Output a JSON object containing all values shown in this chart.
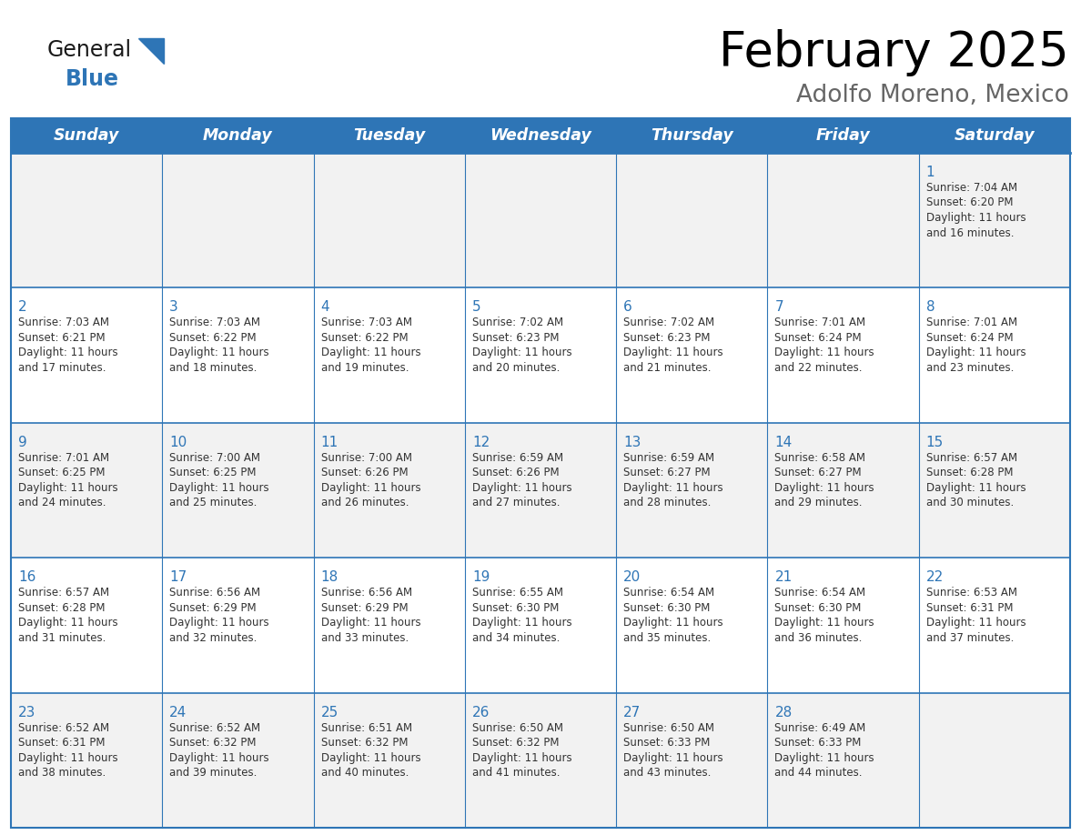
{
  "title": "February 2025",
  "subtitle": "Adolfo Moreno, Mexico",
  "days_of_week": [
    "Sunday",
    "Monday",
    "Tuesday",
    "Wednesday",
    "Thursday",
    "Friday",
    "Saturday"
  ],
  "header_bg": "#2E75B6",
  "header_text": "#FFFFFF",
  "cell_bg_light": "#F2F2F2",
  "cell_bg_white": "#FFFFFF",
  "border_color": "#2E75B6",
  "text_color": "#333333",
  "day_number_color": "#2E75B6",
  "title_color": "#000000",
  "subtitle_color": "#555555",
  "calendar_data": [
    [
      null,
      null,
      null,
      null,
      null,
      null,
      1
    ],
    [
      2,
      3,
      4,
      5,
      6,
      7,
      8
    ],
    [
      9,
      10,
      11,
      12,
      13,
      14,
      15
    ],
    [
      16,
      17,
      18,
      19,
      20,
      21,
      22
    ],
    [
      23,
      24,
      25,
      26,
      27,
      28,
      null
    ]
  ],
  "sunrise_data": {
    "1": "7:04 AM",
    "2": "7:03 AM",
    "3": "7:03 AM",
    "4": "7:03 AM",
    "5": "7:02 AM",
    "6": "7:02 AM",
    "7": "7:01 AM",
    "8": "7:01 AM",
    "9": "7:01 AM",
    "10": "7:00 AM",
    "11": "7:00 AM",
    "12": "6:59 AM",
    "13": "6:59 AM",
    "14": "6:58 AM",
    "15": "6:57 AM",
    "16": "6:57 AM",
    "17": "6:56 AM",
    "18": "6:56 AM",
    "19": "6:55 AM",
    "20": "6:54 AM",
    "21": "6:54 AM",
    "22": "6:53 AM",
    "23": "6:52 AM",
    "24": "6:52 AM",
    "25": "6:51 AM",
    "26": "6:50 AM",
    "27": "6:50 AM",
    "28": "6:49 AM"
  },
  "sunset_data": {
    "1": "6:20 PM",
    "2": "6:21 PM",
    "3": "6:22 PM",
    "4": "6:22 PM",
    "5": "6:23 PM",
    "6": "6:23 PM",
    "7": "6:24 PM",
    "8": "6:24 PM",
    "9": "6:25 PM",
    "10": "6:25 PM",
    "11": "6:26 PM",
    "12": "6:26 PM",
    "13": "6:27 PM",
    "14": "6:27 PM",
    "15": "6:28 PM",
    "16": "6:28 PM",
    "17": "6:29 PM",
    "18": "6:29 PM",
    "19": "6:30 PM",
    "20": "6:30 PM",
    "21": "6:30 PM",
    "22": "6:31 PM",
    "23": "6:31 PM",
    "24": "6:32 PM",
    "25": "6:32 PM",
    "26": "6:32 PM",
    "27": "6:33 PM",
    "28": "6:33 PM"
  },
  "daylight_data": {
    "1": "11 hours and 16 minutes.",
    "2": "11 hours and 17 minutes.",
    "3": "11 hours and 18 minutes.",
    "4": "11 hours and 19 minutes.",
    "5": "11 hours and 20 minutes.",
    "6": "11 hours and 21 minutes.",
    "7": "11 hours and 22 minutes.",
    "8": "11 hours and 23 minutes.",
    "9": "11 hours and 24 minutes.",
    "10": "11 hours and 25 minutes.",
    "11": "11 hours and 26 minutes.",
    "12": "11 hours and 27 minutes.",
    "13": "11 hours and 28 minutes.",
    "14": "11 hours and 29 minutes.",
    "15": "11 hours and 30 minutes.",
    "16": "11 hours and 31 minutes.",
    "17": "11 hours and 32 minutes.",
    "18": "11 hours and 33 minutes.",
    "19": "11 hours and 34 minutes.",
    "20": "11 hours and 35 minutes.",
    "21": "11 hours and 36 minutes.",
    "22": "11 hours and 37 minutes.",
    "23": "11 hours and 38 minutes.",
    "24": "11 hours and 39 minutes.",
    "25": "11 hours and 40 minutes.",
    "26": "11 hours and 41 minutes.",
    "27": "11 hours and 43 minutes.",
    "28": "11 hours and 44 minutes."
  }
}
